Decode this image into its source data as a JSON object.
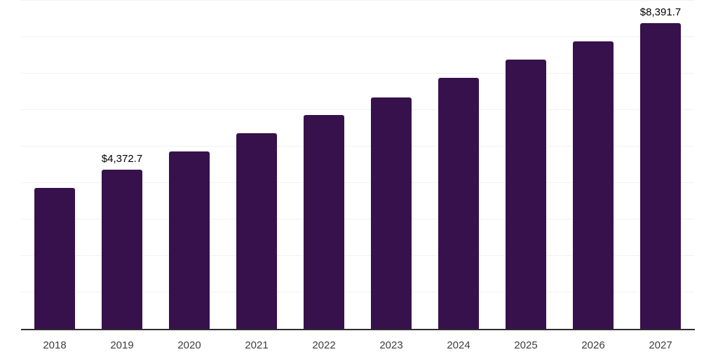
{
  "chart_data": {
    "type": "bar",
    "title": "",
    "xlabel": "",
    "ylabel": "",
    "categories": [
      "2018",
      "2019",
      "2020",
      "2021",
      "2022",
      "2023",
      "2024",
      "2025",
      "2026",
      "2027"
    ],
    "values": [
      3870,
      4372.7,
      4860,
      5370,
      5865,
      6355,
      6890,
      7390,
      7885,
      8391.7
    ],
    "value_labels": [
      "",
      "$4,372.7",
      "",
      "",
      "",
      "",
      "",
      "",
      "",
      "$8,391.7"
    ],
    "ylim": [
      0,
      9000
    ],
    "gridline_step": 1000,
    "grid_on": true,
    "legend": "none",
    "colors": {
      "bar": "#36114C",
      "grid": "#f1f1f3",
      "axis": "#2e2e2e",
      "value_label": "#000000",
      "tick_label": "#3d3d3d",
      "background": "#ffffff"
    }
  }
}
